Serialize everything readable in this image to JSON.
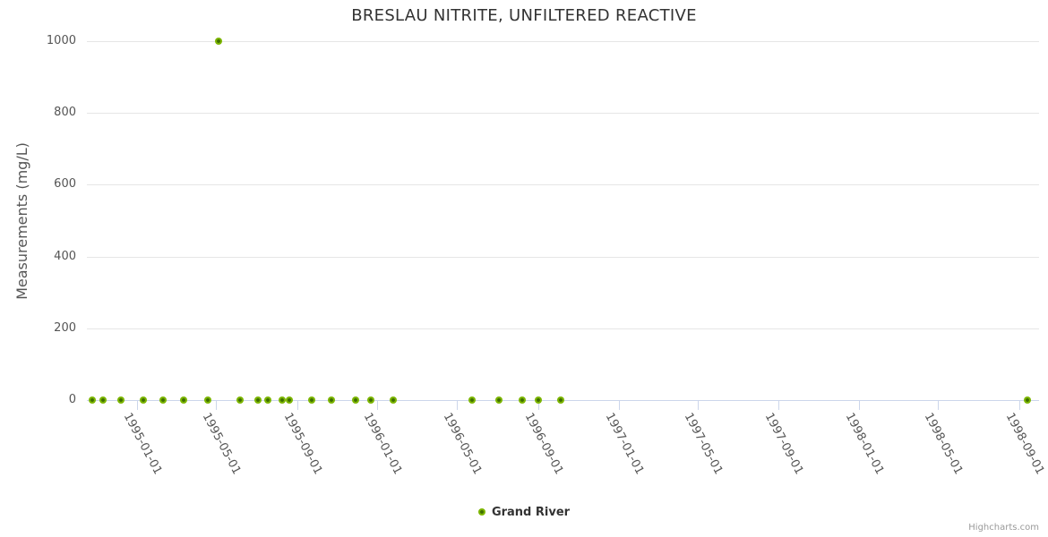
{
  "chart": {
    "credits": "Highcharts.com"
  },
  "chart_data": {
    "type": "scatter",
    "title": "BRESLAU NITRITE, UNFILTERED REACTIVE",
    "xlabel": "",
    "ylabel": "Measurements (mg/L)",
    "ylim": [
      0,
      1000
    ],
    "yticks": [
      0,
      200,
      400,
      600,
      800,
      1000
    ],
    "x_min": "1994-10-17",
    "x_max": "1998-10-01",
    "xticks": [
      "1995-01-01",
      "1995-05-01",
      "1995-09-01",
      "1996-01-01",
      "1996-05-01",
      "1996-09-01",
      "1997-01-01",
      "1997-05-01",
      "1997-09-01",
      "1998-01-01",
      "1998-05-01",
      "1998-09-01"
    ],
    "grid": true,
    "legend_position": "bottom-center",
    "colors": {
      "grid": "#e6e6e6",
      "axis": "#ccd6eb",
      "marker_outer": "#7cb500",
      "marker_inner": "#3f7000"
    },
    "series": [
      {
        "name": "Grand River",
        "points": [
          {
            "x": "1994-10-25",
            "y": 0
          },
          {
            "x": "1994-11-10",
            "y": 0
          },
          {
            "x": "1994-12-07",
            "y": 0
          },
          {
            "x": "1995-01-10",
            "y": 0
          },
          {
            "x": "1995-02-10",
            "y": 0
          },
          {
            "x": "1995-03-13",
            "y": 0
          },
          {
            "x": "1995-04-19",
            "y": 0
          },
          {
            "x": "1995-05-05",
            "y": 1000
          },
          {
            "x": "1995-06-07",
            "y": 0
          },
          {
            "x": "1995-07-04",
            "y": 0
          },
          {
            "x": "1995-07-19",
            "y": 0
          },
          {
            "x": "1995-08-09",
            "y": 0
          },
          {
            "x": "1995-08-20",
            "y": 0
          },
          {
            "x": "1995-09-23",
            "y": 0
          },
          {
            "x": "1995-10-23",
            "y": 0
          },
          {
            "x": "1995-11-29",
            "y": 0
          },
          {
            "x": "1995-12-22",
            "y": 0
          },
          {
            "x": "1996-01-25",
            "y": 0
          },
          {
            "x": "1996-05-23",
            "y": 0
          },
          {
            "x": "1996-07-03",
            "y": 0
          },
          {
            "x": "1996-08-07",
            "y": 0
          },
          {
            "x": "1996-09-01",
            "y": 0
          },
          {
            "x": "1996-10-05",
            "y": 0
          },
          {
            "x": "1998-09-14",
            "y": 0
          }
        ]
      }
    ]
  }
}
